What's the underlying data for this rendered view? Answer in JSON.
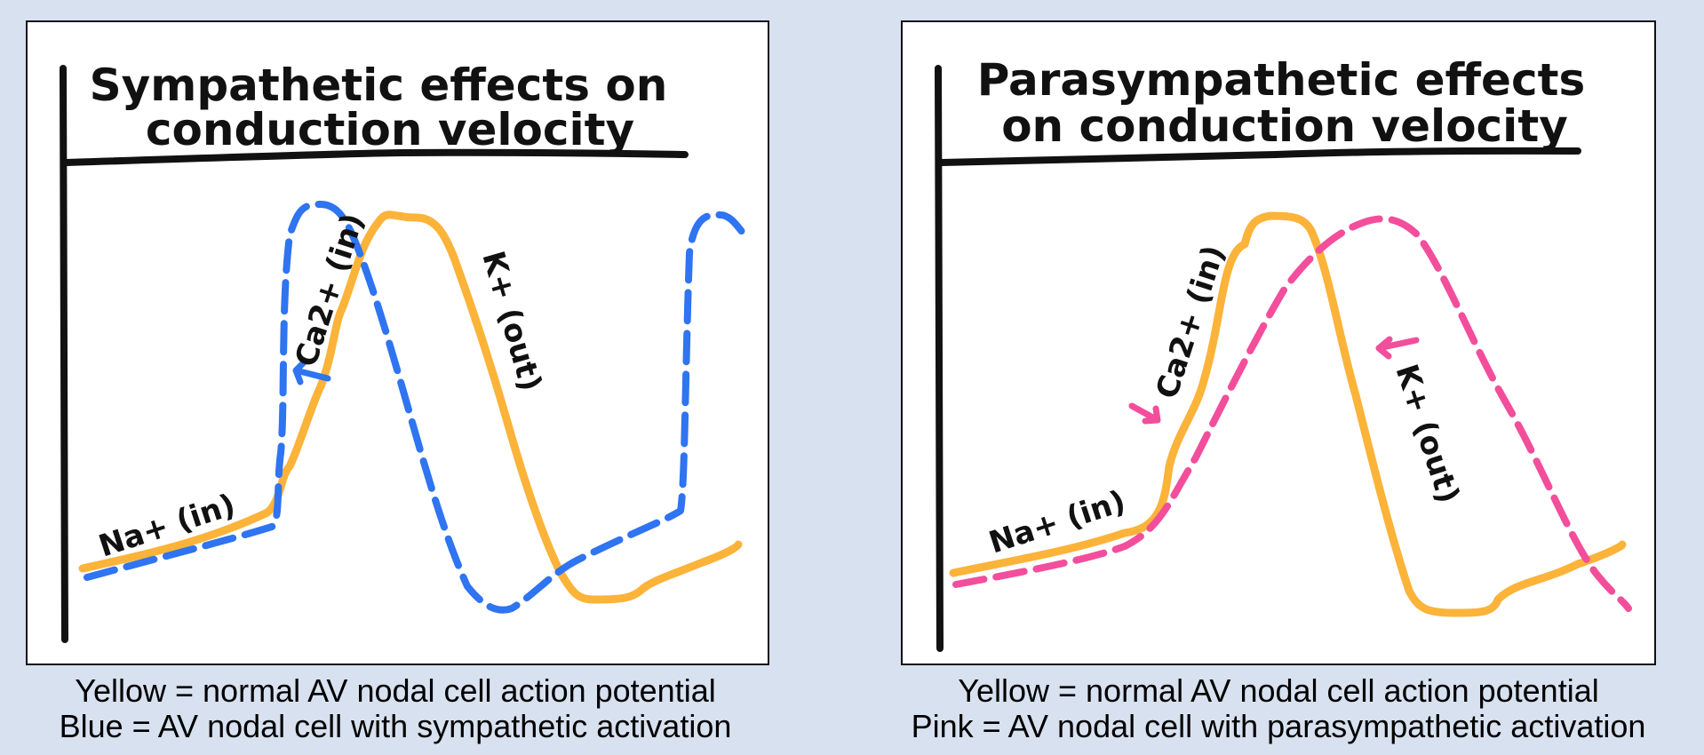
{
  "left_panel": {
    "title_line1": "Sympathetic effects on",
    "title_line2": "conduction velocity",
    "labels": {
      "na": "Na+ (in)",
      "ca": "Ca2+ (in)",
      "k": "K+ (out)"
    },
    "caption_line1": "Yellow = normal AV nodal cell action potential",
    "caption_line2": "Blue = AV nodal cell with sympathetic activation"
  },
  "right_panel": {
    "title_line1": "Parasympathetic effects",
    "title_line2": "on  conduction velocity",
    "labels": {
      "na": "Na+ (in)",
      "ca": "Ca2+ (in)",
      "k": "K+ (out)"
    },
    "caption_line1": "Yellow = normal AV nodal cell action potential",
    "caption_line2": "Pink = AV nodal cell with parasympathetic activation"
  },
  "colors": {
    "normal": "#fbb339",
    "sympathetic": "#2f74f0",
    "parasympathetic": "#f24e9b",
    "axes": "#111111",
    "background": "#d8e1ef"
  }
}
